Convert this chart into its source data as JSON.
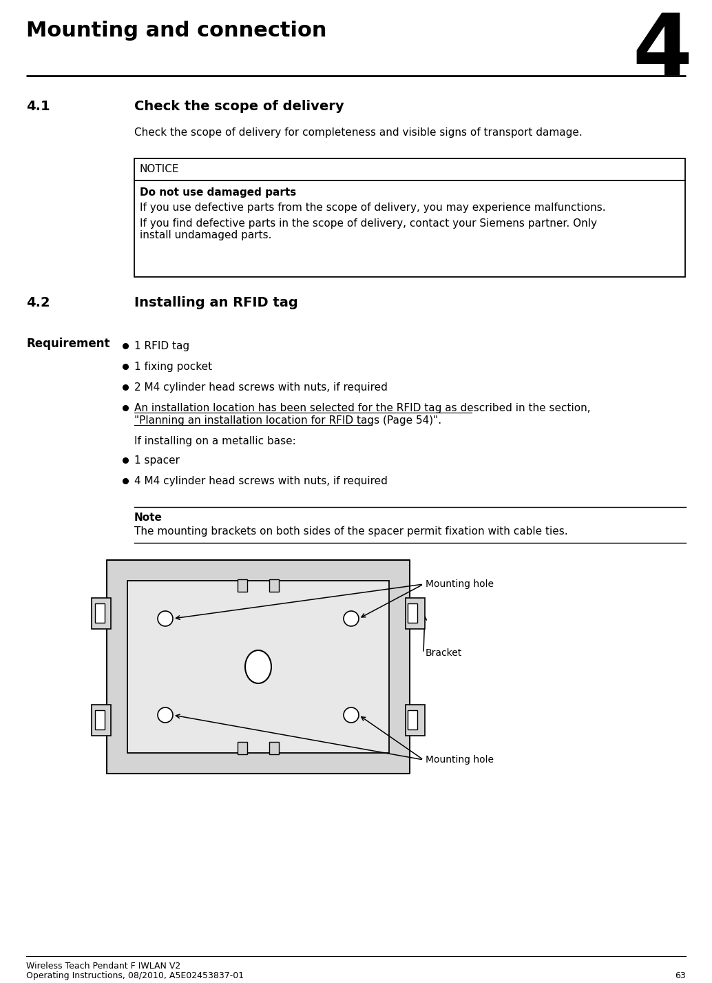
{
  "page_title": "Mounting and connection",
  "chapter_number": "4",
  "section_41_num": "4.1",
  "section_41_head": "Check the scope of delivery",
  "section_41_body": "Check the scope of delivery for completeness and visible signs of transport damage.",
  "notice_header": "NOTICE",
  "notice_title_bold": "Do not use damaged parts",
  "notice_line1": "If you use defective parts from the scope of delivery, you may experience malfunctions.",
  "notice_line2": "If you find defective parts in the scope of delivery, contact your Siemens partner. Only\ninstall undamaged parts.",
  "section_42_num": "4.2",
  "section_42_head": "Installing an RFID tag",
  "req_label": "Requirement",
  "req_bullet1": "1 RFID tag",
  "req_bullet2": "1 fixing pocket",
  "req_bullet3": "2 M4 cylinder head screws with nuts, if required",
  "req_bullet4a": "An installation location has been selected for the RFID tag as described in the section,",
  "req_bullet4b": "\"Planning an installation location for RFID tags (Page 54)\".",
  "metallic_text": "If installing on a metallic base:",
  "metallic_bullet1": "1 spacer",
  "metallic_bullet2": "4 M4 cylinder head screws with nuts, if required",
  "note_header": "Note",
  "note_body": "The mounting brackets on both sides of the spacer permit fixation with cable ties.",
  "label_mounting_hole_top": "Mounting hole",
  "label_bracket": "Bracket",
  "label_mounting_hole_bottom": "Mounting hole",
  "footer_line1": "Wireless Teach Pendant F IWLAN V2",
  "footer_line2": "Operating Instructions, 08/2010, A5E02453837-01",
  "footer_page": "63",
  "bg_color": "#ffffff",
  "text_color": "#000000",
  "box_border_color": "#000000",
  "diagram_bg": "#d4d4d4",
  "diagram_inner_bg": "#e8e8e8"
}
